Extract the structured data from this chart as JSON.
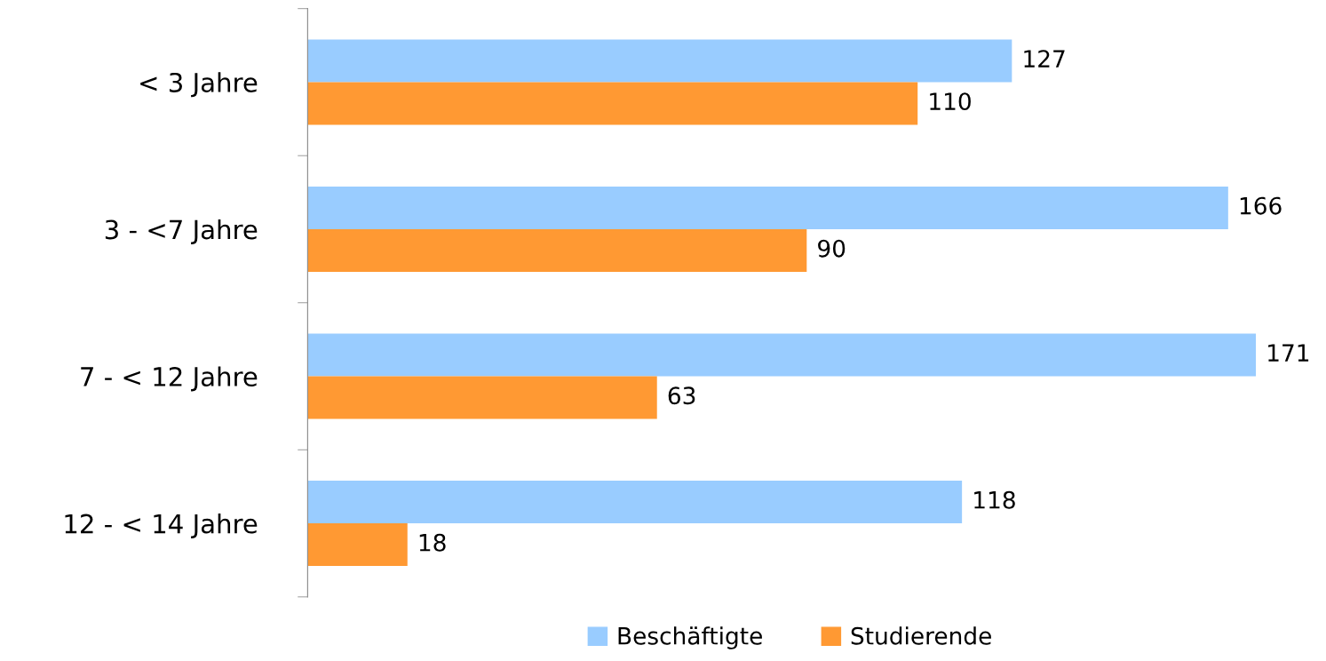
{
  "chart_data": {
    "type": "bar",
    "orientation": "horizontal",
    "categories": [
      "< 3 Jahre",
      "3 - <7 Jahre",
      "7 - < 12 Jahre",
      "12 - < 14 Jahre"
    ],
    "series": [
      {
        "name": "Beschäftigte",
        "color": "#99ccff",
        "values": [
          127,
          166,
          171,
          118
        ]
      },
      {
        "name": "Studierende",
        "color": "#ff9933",
        "values": [
          110,
          90,
          63,
          18
        ]
      }
    ],
    "data_labels": true,
    "legend": "bottom",
    "grid": false
  }
}
